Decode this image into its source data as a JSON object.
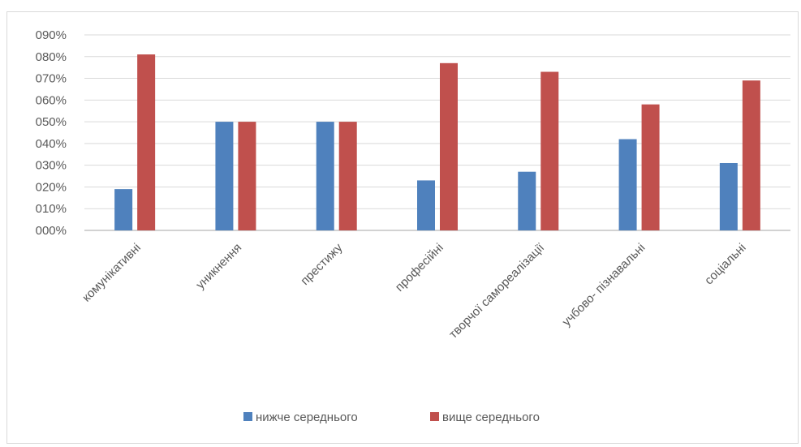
{
  "chart_data": {
    "type": "bar",
    "categories": [
      "комунікативні",
      "уникнення",
      "престижу",
      "професійні",
      "творчої самореалізації",
      "учбово- пізнавальні",
      "соціальні"
    ],
    "series": [
      {
        "name": "нижче середнього",
        "color": "#4f81bd",
        "values": [
          0.19,
          0.5,
          0.5,
          0.23,
          0.27,
          0.42,
          0.31
        ]
      },
      {
        "name": "вище середнього",
        "color": "#c0504d",
        "values": [
          0.81,
          0.5,
          0.5,
          0.77,
          0.73,
          0.58,
          0.69
        ]
      }
    ],
    "yticks": [
      "000%",
      "010%",
      "020%",
      "030%",
      "040%",
      "050%",
      "060%",
      "070%",
      "080%",
      "090%"
    ],
    "ylim": [
      0,
      0.9
    ],
    "grid": true,
    "legend_position": "bottom"
  }
}
